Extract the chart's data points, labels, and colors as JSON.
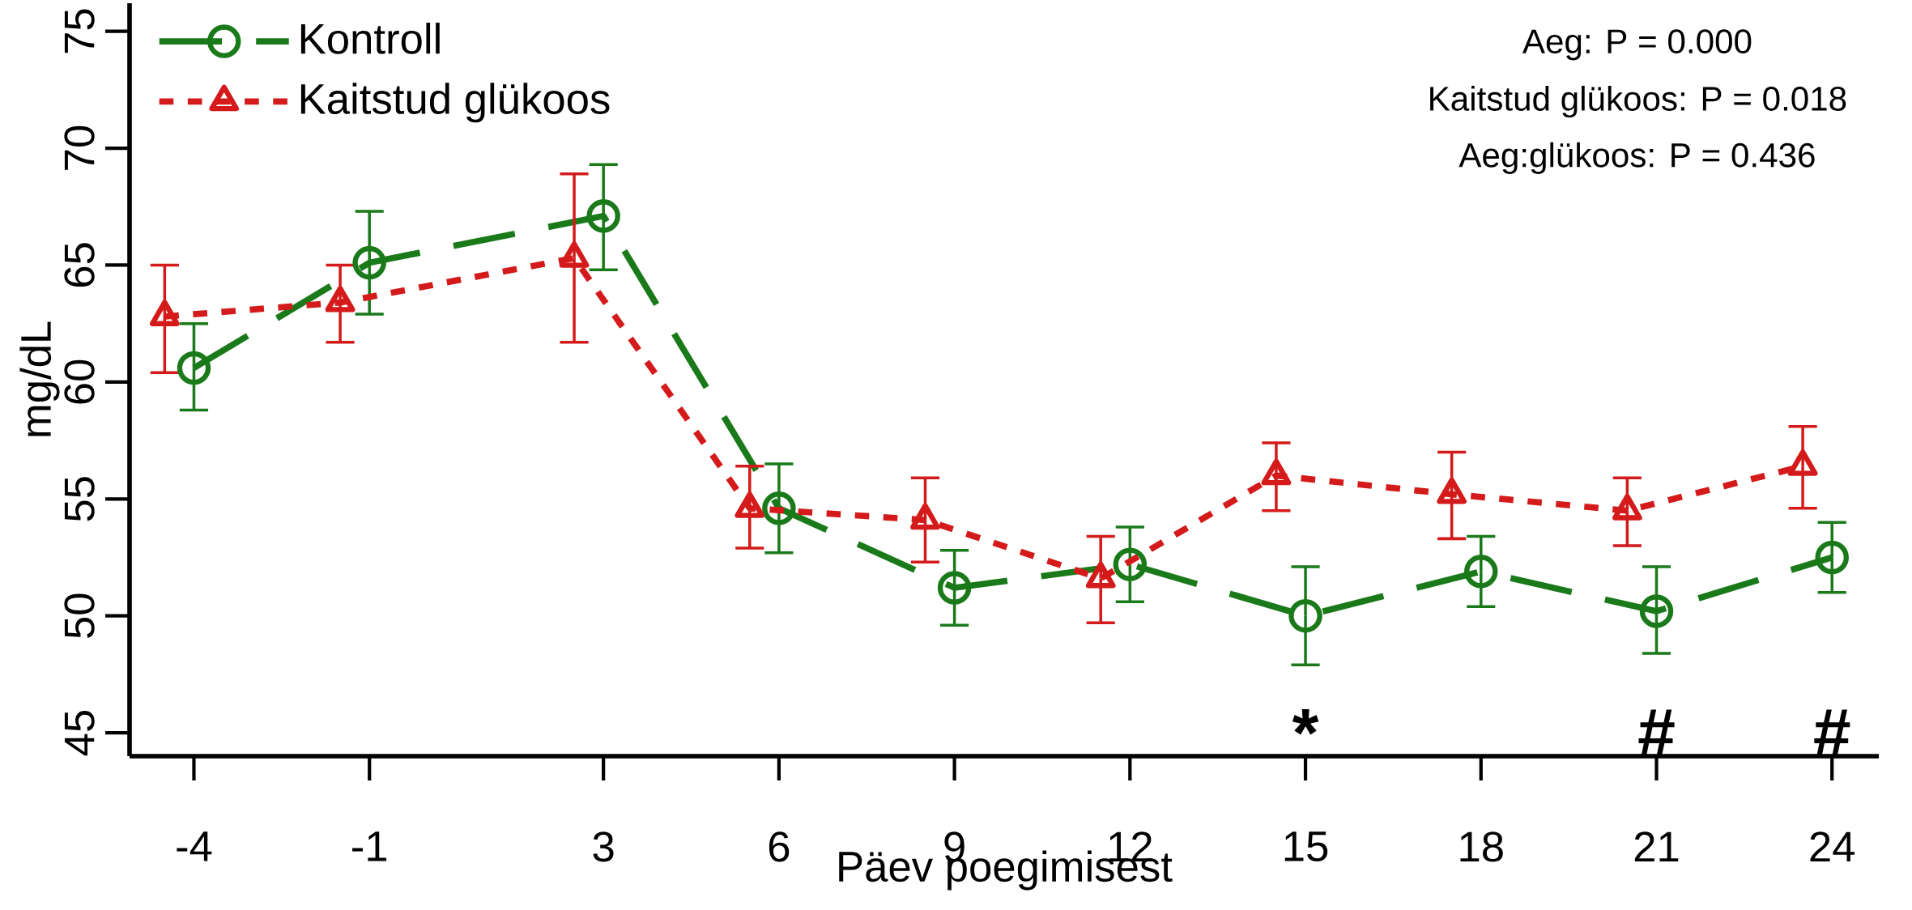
{
  "chart_data": {
    "type": "line",
    "xlabel": "Päev poegimisest",
    "ylabel": "mg/dL",
    "xlim": [
      -5.1,
      24.8
    ],
    "ylim": [
      44,
      76.2
    ],
    "xticks": [
      -4,
      -1,
      3,
      6,
      9,
      12,
      15,
      18,
      21,
      24
    ],
    "yticks": [
      45,
      50,
      55,
      60,
      65,
      70,
      75
    ],
    "grid": false,
    "legend": "top left",
    "series": [
      {
        "name": "Kontroll",
        "color": "#1a7a1a",
        "marker": "circle",
        "line_style": "dashed",
        "x": [
          -4,
          -1,
          3,
          6,
          9,
          12,
          15,
          18,
          21,
          24
        ],
        "values": [
          60.6,
          65.1,
          67.1,
          54.6,
          51.2,
          52.2,
          50.0,
          51.9,
          50.2,
          52.5
        ],
        "errors": [
          [
            58.8,
            62.5
          ],
          [
            62.9,
            67.3
          ],
          [
            64.8,
            69.3
          ],
          [
            52.7,
            56.5
          ],
          [
            49.6,
            52.8
          ],
          [
            50.6,
            53.8
          ],
          [
            47.9,
            52.1
          ],
          [
            50.4,
            53.4
          ],
          [
            48.4,
            52.1
          ],
          [
            51.0,
            54.0
          ]
        ]
      },
      {
        "name": "Kaitstud glükoos",
        "color": "#d41a1a",
        "marker": "triangle",
        "line_style": "dotted",
        "x": [
          -4.5,
          -1.5,
          2.5,
          5.5,
          8.5,
          11.5,
          14.5,
          17.5,
          20.5,
          23.5
        ],
        "values": [
          62.8,
          63.4,
          65.3,
          54.6,
          54.1,
          51.6,
          56.0,
          55.2,
          54.5,
          56.4
        ],
        "errors": [
          [
            60.4,
            65.0
          ],
          [
            61.7,
            65.0
          ],
          [
            61.7,
            68.9
          ],
          [
            52.9,
            56.4
          ],
          [
            52.3,
            55.9
          ],
          [
            49.7,
            53.4
          ],
          [
            54.5,
            57.4
          ],
          [
            53.3,
            57.0
          ],
          [
            53.0,
            55.9
          ],
          [
            54.6,
            58.1
          ]
        ]
      }
    ],
    "annotations": [
      "Aeg: P = 0.000",
      "Kaitstud glükoos: P = 0.018",
      "Aeg:glükoos: P = 0.436",
      "*",
      "#",
      "#"
    ]
  }
}
